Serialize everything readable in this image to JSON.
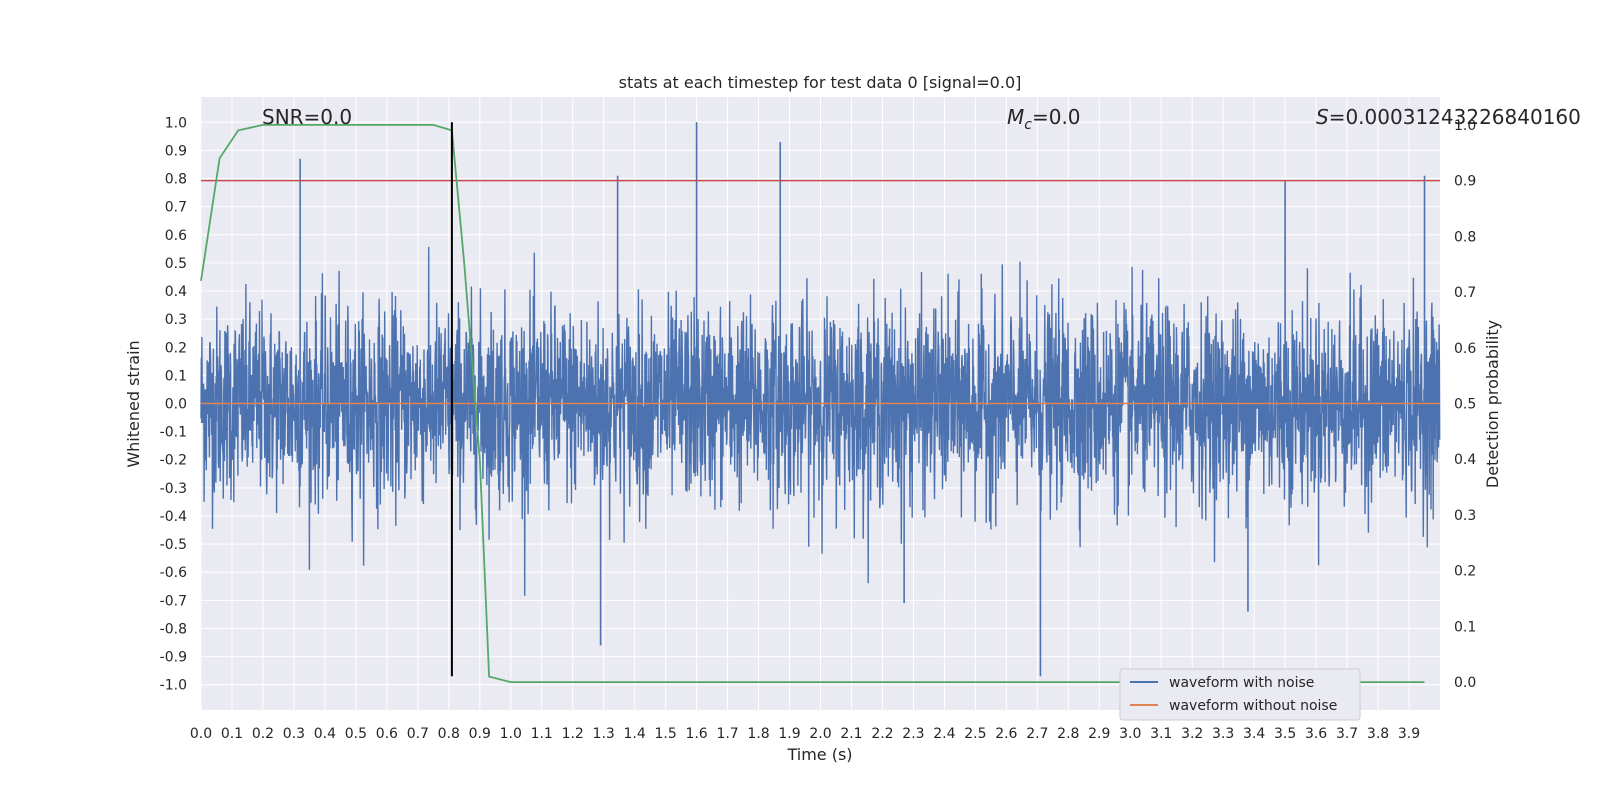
{
  "chart_data": {
    "type": "line",
    "title": "stats at each timestep for test data 0 [signal=0.0]",
    "xlabel": "Time (s)",
    "ylabel": "Whitened strain",
    "ylabel_right": "Detection probability",
    "xlim": [
      0.0,
      4.0
    ],
    "ylim": [
      -1.09,
      1.09
    ],
    "ylim_right": [
      -0.05,
      1.05
    ],
    "x_ticks": [
      "0.0",
      "0.1",
      "0.2",
      "0.3",
      "0.4",
      "0.5",
      "0.6",
      "0.7",
      "0.8",
      "0.9",
      "1.0",
      "1.1",
      "1.2",
      "1.3",
      "1.4",
      "1.5",
      "1.6",
      "1.7",
      "1.8",
      "1.9",
      "2.0",
      "2.1",
      "2.2",
      "2.3",
      "2.4",
      "2.5",
      "2.6",
      "2.7",
      "2.8",
      "2.9",
      "3.0",
      "3.1",
      "3.2",
      "3.3",
      "3.4",
      "3.5",
      "3.6",
      "3.7",
      "3.8",
      "3.9"
    ],
    "y_ticks": [
      "1.0",
      "0.9",
      "0.8",
      "0.7",
      "0.6",
      "0.5",
      "0.4",
      "0.3",
      "0.2",
      "0.1",
      "0.0",
      "-0.1",
      "-0.2",
      "-0.3",
      "-0.4",
      "-0.5",
      "-0.6",
      "-0.7",
      "-0.8",
      "-0.9",
      "-1.0"
    ],
    "y_ticks_right": [
      "1.0",
      "0.9",
      "0.8",
      "0.7",
      "0.6",
      "0.5",
      "0.4",
      "0.3",
      "0.2",
      "0.1",
      "0.0"
    ],
    "annotations": {
      "snr": "SNR=0.0",
      "mc_symbol": "M",
      "mc_sub": "c",
      "mc_value": "=0.0",
      "s_symbol": "S",
      "s_value": "=0.00031243226840160"
    },
    "legend": [
      "waveform with noise",
      "waveform without noise"
    ],
    "legend_position": "lower-right",
    "series": [
      {
        "name": "waveform with noise",
        "color": "#4c72b0",
        "description_values": "noise oscillating roughly between -0.6 and 0.6 with spikes to 1.0 and -0.97"
      },
      {
        "name": "waveform without noise",
        "color": "#dd8452",
        "y": 0.0
      },
      {
        "name": "",
        "color": "#55a868",
        "axis": "right",
        "x": [
          0.0,
          0.06,
          0.12,
          0.2,
          0.3,
          0.4,
          0.5,
          0.6,
          0.7,
          0.75,
          0.81,
          0.85,
          0.9,
          0.93,
          1.0,
          1.1,
          1.5,
          2.0,
          2.5,
          3.0,
          3.5,
          3.95
        ],
        "y": [
          0.72,
          0.94,
          0.99,
          1.0,
          1.0,
          1.0,
          1.0,
          1.0,
          1.0,
          1.0,
          0.99,
          0.75,
          0.4,
          0.01,
          0.0,
          0.0,
          0.0,
          0.0,
          0.0,
          0.0,
          0.0,
          0.0
        ]
      }
    ],
    "threshold_right": 0.9,
    "threshold_color": "#c44e52",
    "vline_x": 0.81,
    "vline_ymin": -0.97,
    "vline_ymax": 1.0,
    "grid": true
  }
}
